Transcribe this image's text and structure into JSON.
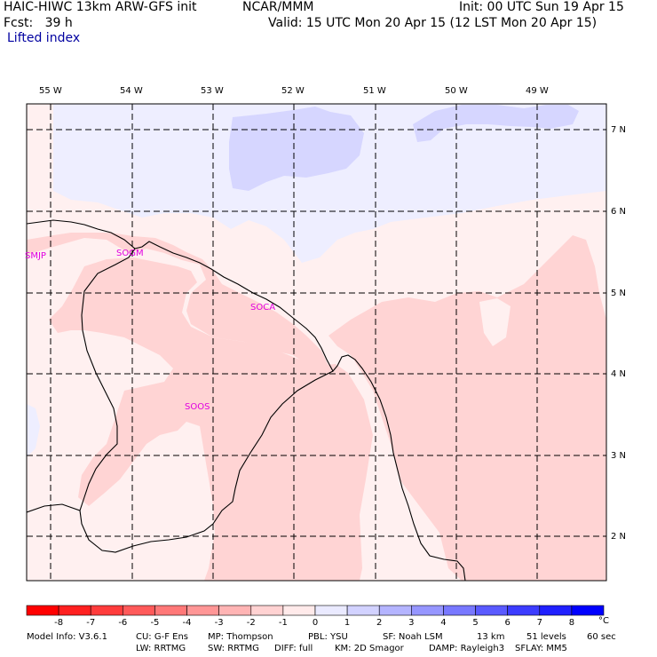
{
  "header": {
    "model": "HAIC-HIWC 13km ARW-GFS init",
    "org": "NCAR/MMM",
    "init": "Init: 00 UTC Sun 19 Apr 15",
    "fcst": "Fcst:   39 h",
    "valid": "Valid: 15 UTC Mon 20 Apr 15 (12 LST Mon 20 Apr 15)",
    "field": "Lifted index"
  },
  "axes": {
    "lon_labels": [
      "55 W",
      "54 W",
      "53 W",
      "52 W",
      "51 W",
      "50 W",
      "49 W"
    ],
    "lat_labels": [
      "7 N",
      "6 N",
      "5 N",
      "4 N",
      "3 N",
      "2 N"
    ]
  },
  "stations": [
    "SMJP",
    "SOGM",
    "SOCA",
    "SOOS"
  ],
  "colorbar": {
    "labels": [
      "-8",
      "-7",
      "-6",
      "-5",
      "-4",
      "-3",
      "-2",
      "-1",
      "0",
      "1",
      "2",
      "3",
      "4",
      "5",
      "6",
      "7",
      "8"
    ],
    "unit": "°C",
    "colors": [
      "#ff0000",
      "#ff2020",
      "#ff3c3c",
      "#ff5a5a",
      "#ff7878",
      "#ff9696",
      "#ffb4b4",
      "#ffd2d2",
      "#ffeaea",
      "#eaeaff",
      "#d2d2ff",
      "#b4b4ff",
      "#9696ff",
      "#7878ff",
      "#5a5aff",
      "#3c3cff",
      "#2020ff",
      "#0000ff"
    ]
  },
  "footer": {
    "line1": [
      "Model Info: V3.6.1",
      "CU: G-F Ens",
      "MP: Thompson",
      "PBL: YSU",
      "SF: Noah LSM",
      "13 km",
      "51 levels",
      "60 sec"
    ],
    "line2": [
      "LW: RRTMG",
      "SW: RRTMG",
      "DIFF: full",
      "KM: 2D Smagor",
      "DAMP: Rayleigh3",
      "SFLAY: MM5"
    ]
  }
}
